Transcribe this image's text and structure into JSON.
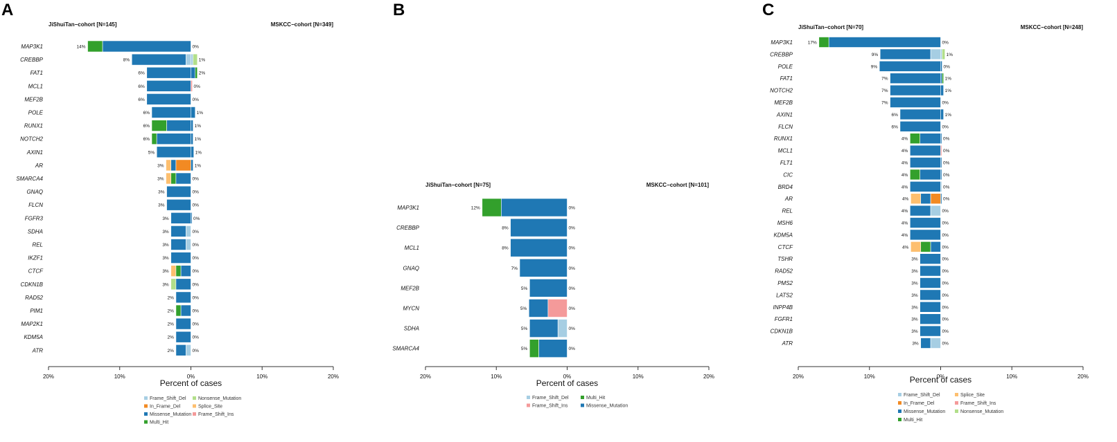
{
  "figure": {
    "panel_labels": [
      "A",
      "B",
      "C"
    ],
    "colors": {
      "Frame_Shift_Del": "#a6cee3",
      "In_Frame_Del": "#f28a23",
      "Missense_Mutation": "#1f78b4",
      "Multi_Hit": "#33a02c",
      "Nonsense_Mutation": "#b2df8a",
      "Splice_Site": "#fdbf6f",
      "Frame_Shift_Ins": "#f49a9a"
    }
  },
  "chart_data": [
    {
      "type": "bar",
      "orientation": "horizontal-diverging",
      "panel": "A",
      "left_title": "JiShuiTan−cohort [N=145]",
      "right_title": "MSKCC−cohort [N=349]",
      "xlabel": "Percent of cases",
      "xticks": [
        "20%",
        "10%",
        "0%",
        "10%",
        "20%"
      ],
      "xlim": [
        -20,
        20
      ],
      "genes": [
        "MAP3K1",
        "CREBBP",
        "FAT1",
        "MCL1",
        "MEF2B",
        "POLE",
        "RUNX1",
        "NOTCH2",
        "AXIN1",
        "AR",
        "SMARCA4",
        "GNAQ",
        "FLCN",
        "FGFR3",
        "SDHA",
        "REL",
        "IKZF1",
        "CTCF",
        "CDKN1B",
        "RAD52",
        "PIM1",
        "MAP2K1",
        "KDM5A",
        "ATR"
      ],
      "left_labels": [
        "14%",
        "8%",
        "6%",
        "6%",
        "6%",
        "6%",
        "6%",
        "6%",
        "5%",
        "3%",
        "3%",
        "3%",
        "3%",
        "3%",
        "3%",
        "3%",
        "3%",
        "3%",
        "3%",
        "2%",
        "2%",
        "2%",
        "2%",
        "2%"
      ],
      "right_labels": [
        "0%",
        "1%",
        "2%",
        "0%",
        "0%",
        "1%",
        "1%",
        "1%",
        "1%",
        "1%",
        "0%",
        "0%",
        "0%",
        "0%",
        "0%",
        "0%",
        "0%",
        "0%",
        "0%",
        "0%",
        "0%",
        "0%",
        "0%",
        "0%"
      ],
      "left_segments": [
        [
          [
            "Multi_Hit",
            2.1
          ],
          [
            "Missense_Mutation",
            12.4
          ]
        ],
        [
          [
            "Missense_Mutation",
            7.6
          ],
          [
            "Frame_Shift_Del",
            0.7
          ]
        ],
        [
          [
            "Missense_Mutation",
            6.2
          ]
        ],
        [
          [
            "Missense_Mutation",
            6.2
          ]
        ],
        [
          [
            "Missense_Mutation",
            6.2
          ]
        ],
        [
          [
            "Missense_Mutation",
            5.5
          ]
        ],
        [
          [
            "Multi_Hit",
            2.1
          ],
          [
            "Missense_Mutation",
            3.4
          ]
        ],
        [
          [
            "Multi_Hit",
            0.7
          ],
          [
            "Missense_Mutation",
            4.8
          ]
        ],
        [
          [
            "Missense_Mutation",
            4.8
          ]
        ],
        [
          [
            "Splice_Site",
            0.7
          ],
          [
            "Missense_Mutation",
            0.7
          ],
          [
            "In_Frame_Del",
            2.1
          ]
        ],
        [
          [
            "Splice_Site",
            0.7
          ],
          [
            "Multi_Hit",
            0.7
          ],
          [
            "Missense_Mutation",
            2.1
          ]
        ],
        [
          [
            "Missense_Mutation",
            3.4
          ]
        ],
        [
          [
            "Missense_Mutation",
            3.4
          ]
        ],
        [
          [
            "Missense_Mutation",
            2.8
          ]
        ],
        [
          [
            "Missense_Mutation",
            2.1
          ],
          [
            "Frame_Shift_Del",
            0.7
          ]
        ],
        [
          [
            "Missense_Mutation",
            2.1
          ],
          [
            "Frame_Shift_Del",
            0.7
          ]
        ],
        [
          [
            "Missense_Mutation",
            2.8
          ]
        ],
        [
          [
            "Splice_Site",
            0.7
          ],
          [
            "Multi_Hit",
            0.7
          ],
          [
            "Missense_Mutation",
            1.4
          ]
        ],
        [
          [
            "Nonsense_Mutation",
            0.7
          ],
          [
            "Missense_Mutation",
            2.1
          ]
        ],
        [
          [
            "Missense_Mutation",
            2.1
          ]
        ],
        [
          [
            "Multi_Hit",
            0.7
          ],
          [
            "Missense_Mutation",
            1.4
          ]
        ],
        [
          [
            "Missense_Mutation",
            2.1
          ]
        ],
        [
          [
            "Missense_Mutation",
            2.1
          ]
        ],
        [
          [
            "Missense_Mutation",
            1.4
          ],
          [
            "Frame_Shift_Del",
            0.7
          ]
        ]
      ],
      "right_segments": [
        [],
        [
          [
            "Frame_Shift_Del",
            0.3
          ],
          [
            "Nonsense_Mutation",
            0.6
          ]
        ],
        [
          [
            "Missense_Mutation",
            0.6
          ],
          [
            "Multi_Hit",
            0.3
          ]
        ],
        [
          [
            "Frame_Shift_Ins",
            0.2
          ]
        ],
        [],
        [
          [
            "Missense_Mutation",
            0.6
          ]
        ],
        [
          [
            "Missense_Mutation",
            0.3
          ]
        ],
        [
          [
            "Missense_Mutation",
            0.3
          ]
        ],
        [
          [
            "Missense_Mutation",
            0.4
          ]
        ],
        [
          [
            "Missense_Mutation",
            0.3
          ]
        ],
        [],
        [],
        [],
        [
          [
            "Missense_Mutation",
            0.15
          ]
        ],
        [],
        [],
        [],
        [],
        [],
        [],
        [],
        [],
        [],
        []
      ],
      "legend": [
        "Frame_Shift_Del",
        "Nonsense_Mutation",
        "In_Frame_Del",
        "Splice_Site",
        "Missense_Mutation",
        "Frame_Shift_Ins",
        "Multi_Hit"
      ]
    },
    {
      "type": "bar",
      "orientation": "horizontal-diverging",
      "panel": "B",
      "left_title": "JiShuiTan−cohort [N=75]",
      "right_title": "MSKCC−cohort [N=101]",
      "xlabel": "Percent of cases",
      "xticks": [
        "20%",
        "10%",
        "0%",
        "10%",
        "20%"
      ],
      "xlim": [
        -20,
        20
      ],
      "genes": [
        "MAP3K1",
        "CREBBP",
        "MCL1",
        "GNAQ",
        "MEF2B",
        "MYCN",
        "SDHA",
        "SMARCA4"
      ],
      "left_labels": [
        "12%",
        "8%",
        "8%",
        "7%",
        "5%",
        "5%",
        "5%",
        "5%"
      ],
      "right_labels": [
        "0%",
        "0%",
        "0%",
        "0%",
        "0%",
        "0%",
        "0%",
        "0%"
      ],
      "left_segments": [
        [
          [
            "Multi_Hit",
            2.7
          ],
          [
            "Missense_Mutation",
            9.3
          ]
        ],
        [
          [
            "Missense_Mutation",
            8.0
          ]
        ],
        [
          [
            "Missense_Mutation",
            8.0
          ]
        ],
        [
          [
            "Missense_Mutation",
            6.7
          ]
        ],
        [
          [
            "Missense_Mutation",
            5.3
          ]
        ],
        [
          [
            "Missense_Mutation",
            2.7
          ],
          [
            "Frame_Shift_Ins",
            2.7
          ]
        ],
        [
          [
            "Missense_Mutation",
            4.0
          ],
          [
            "Frame_Shift_Del",
            1.3
          ]
        ],
        [
          [
            "Multi_Hit",
            1.3
          ],
          [
            "Missense_Mutation",
            4.0
          ]
        ]
      ],
      "right_segments": [
        [],
        [],
        [],
        [],
        [],
        [],
        [],
        []
      ],
      "legend": [
        "Frame_Shift_Del",
        "Multi_Hit",
        "Frame_Shift_Ins",
        "Missense_Mutation"
      ]
    },
    {
      "type": "bar",
      "orientation": "horizontal-diverging",
      "panel": "C",
      "left_title": "JiShuiTan−cohort [N=70]",
      "right_title": "MSKCC−cohort [N=248]",
      "xlabel": "Percent of cases",
      "xticks": [
        "20%",
        "10%",
        "0%",
        "10%",
        "20%"
      ],
      "xlim": [
        -20,
        20
      ],
      "genes": [
        "MAP3K1",
        "CREBBP",
        "POLE",
        "FAT1",
        "NOTCH2",
        "MEF2B",
        "AXIN1",
        "FLCN",
        "RUNX1",
        "MCL1",
        "FLT1",
        "CIC",
        "BRD4",
        "AR",
        "REL",
        "MSH6",
        "KDM5A",
        "CTCF",
        "TSHR",
        "RAD52",
        "PMS2",
        "LATS2",
        "INPP4B",
        "FGFR1",
        "CDKN1B",
        "ATR"
      ],
      "left_labels": [
        "17%",
        "9%",
        "9%",
        "7%",
        "7%",
        "7%",
        "6%",
        "6%",
        "4%",
        "4%",
        "4%",
        "4%",
        "4%",
        "4%",
        "4%",
        "4%",
        "4%",
        "4%",
        "3%",
        "3%",
        "3%",
        "3%",
        "3%",
        "3%",
        "3%",
        "3%"
      ],
      "right_labels": [
        "0%",
        "1%",
        "0%",
        "1%",
        "1%",
        "0%",
        "1%",
        "0%",
        "0%",
        "0%",
        "0%",
        "0%",
        "0%",
        "0%",
        "0%",
        "0%",
        "0%",
        "0%",
        "0%",
        "0%",
        "0%",
        "0%",
        "0%",
        "0%",
        "0%",
        "0%"
      ],
      "left_segments": [
        [
          [
            "Multi_Hit",
            1.4
          ],
          [
            "Missense_Mutation",
            15.7
          ]
        ],
        [
          [
            "Missense_Mutation",
            7.1
          ],
          [
            "Frame_Shift_Del",
            1.4
          ]
        ],
        [
          [
            "Missense_Mutation",
            8.6
          ]
        ],
        [
          [
            "Missense_Mutation",
            7.1
          ]
        ],
        [
          [
            "Missense_Mutation",
            7.1
          ]
        ],
        [
          [
            "Missense_Mutation",
            7.1
          ]
        ],
        [
          [
            "Missense_Mutation",
            5.7
          ]
        ],
        [
          [
            "Missense_Mutation",
            5.7
          ]
        ],
        [
          [
            "Multi_Hit",
            1.4
          ],
          [
            "Missense_Mutation",
            2.9
          ]
        ],
        [
          [
            "Missense_Mutation",
            4.3
          ]
        ],
        [
          [
            "Missense_Mutation",
            4.3
          ]
        ],
        [
          [
            "Multi_Hit",
            1.4
          ],
          [
            "Missense_Mutation",
            2.9
          ]
        ],
        [
          [
            "Missense_Mutation",
            4.3
          ]
        ],
        [
          [
            "Splice_Site",
            1.4
          ],
          [
            "Missense_Mutation",
            1.4
          ],
          [
            "In_Frame_Del",
            1.4
          ]
        ],
        [
          [
            "Missense_Mutation",
            2.9
          ],
          [
            "Frame_Shift_Del",
            1.4
          ]
        ],
        [
          [
            "Missense_Mutation",
            4.3
          ]
        ],
        [
          [
            "Missense_Mutation",
            4.3
          ]
        ],
        [
          [
            "Splice_Site",
            1.4
          ],
          [
            "Multi_Hit",
            1.4
          ],
          [
            "Missense_Mutation",
            1.4
          ]
        ],
        [
          [
            "Missense_Mutation",
            2.9
          ]
        ],
        [
          [
            "Missense_Mutation",
            2.9
          ]
        ],
        [
          [
            "Missense_Mutation",
            2.9
          ]
        ],
        [
          [
            "Missense_Mutation",
            2.9
          ]
        ],
        [
          [
            "Missense_Mutation",
            2.9
          ]
        ],
        [
          [
            "Missense_Mutation",
            2.9
          ]
        ],
        [
          [
            "Missense_Mutation",
            2.9
          ]
        ],
        [
          [
            "Missense_Mutation",
            1.4
          ],
          [
            "Frame_Shift_Del",
            1.4
          ]
        ]
      ],
      "right_segments": [
        [],
        [
          [
            "Frame_Shift_Del",
            0.2
          ],
          [
            "Nonsense_Mutation",
            0.4
          ]
        ],
        [
          [
            "Missense_Mutation",
            0.2
          ]
        ],
        [
          [
            "Missense_Mutation",
            0.2
          ],
          [
            "Multi_Hit",
            0.2
          ]
        ],
        [
          [
            "Missense_Mutation",
            0.4
          ]
        ],
        [],
        [
          [
            "Missense_Mutation",
            0.4
          ]
        ],
        [],
        [
          [
            "Missense_Mutation",
            0.15
          ]
        ],
        [
          [
            "Frame_Shift_Ins",
            0.15
          ]
        ],
        [
          [
            "Missense_Mutation",
            0.15
          ]
        ],
        [
          [
            "Missense_Mutation",
            0.15
          ]
        ],
        [
          [
            "Frame_Shift_Del",
            0.15
          ]
        ],
        [
          [
            "Missense_Mutation",
            0.15
          ]
        ],
        [],
        [],
        [],
        [],
        [],
        [],
        [],
        [],
        [],
        [],
        [],
        []
      ],
      "legend": [
        "Frame_Shift_Del",
        "Splice_Site",
        "In_Frame_Del",
        "Frame_Shift_Ins",
        "Missense_Mutation",
        "Nonsense_Mutation",
        "Multi_Hit"
      ]
    }
  ]
}
